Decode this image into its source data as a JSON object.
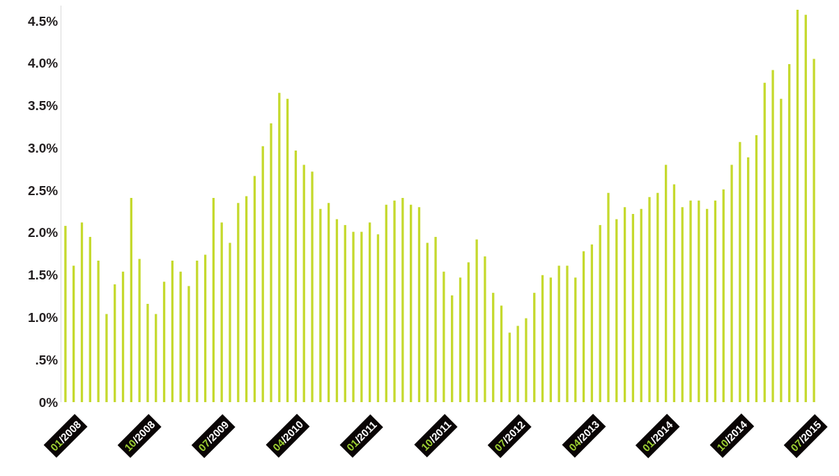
{
  "chart_data": {
    "type": "bar",
    "color": "#c5d92d",
    "categories": [
      "01/2008",
      null,
      null,
      null,
      null,
      null,
      null,
      null,
      null,
      "10/2008",
      null,
      null,
      null,
      null,
      null,
      null,
      null,
      null,
      "07/2009",
      null,
      null,
      null,
      null,
      null,
      null,
      null,
      null,
      "04/2010",
      null,
      null,
      null,
      null,
      null,
      null,
      null,
      null,
      "01/2011",
      null,
      null,
      null,
      null,
      null,
      null,
      null,
      null,
      "10/2011",
      null,
      null,
      null,
      null,
      null,
      null,
      null,
      null,
      "07/2012",
      null,
      null,
      null,
      null,
      null,
      null,
      null,
      null,
      "04/2013",
      null,
      null,
      null,
      null,
      null,
      null,
      null,
      null,
      "01/2014",
      null,
      null,
      null,
      null,
      null,
      null,
      null,
      null,
      "10/2014",
      null,
      null,
      null,
      null,
      null,
      null,
      null,
      null,
      "07/2015",
      null
    ],
    "values": [
      2.08,
      1.61,
      2.12,
      1.95,
      1.67,
      1.04,
      1.39,
      1.54,
      2.41,
      1.69,
      1.16,
      1.04,
      1.42,
      1.67,
      1.54,
      1.37,
      1.67,
      1.74,
      2.41,
      2.12,
      1.88,
      2.35,
      2.43,
      2.67,
      3.02,
      3.29,
      3.65,
      3.58,
      2.97,
      2.8,
      2.72,
      2.28,
      2.35,
      2.16,
      2.09,
      2.01,
      2.01,
      2.12,
      1.98,
      2.33,
      2.38,
      2.41,
      2.33,
      2.3,
      1.88,
      1.95,
      1.54,
      1.26,
      1.47,
      1.65,
      1.92,
      1.72,
      1.29,
      1.14,
      0.82,
      0.9,
      0.99,
      1.29,
      1.5,
      1.47,
      1.61,
      1.61,
      1.47,
      1.78,
      1.86,
      2.09,
      2.47,
      2.16,
      2.3,
      2.22,
      2.28,
      2.42,
      2.47,
      2.8,
      2.57,
      2.3,
      2.38,
      2.38,
      2.28,
      2.38,
      2.51,
      2.8,
      3.07,
      2.89,
      3.15,
      3.77,
      3.92,
      3.58,
      3.99,
      4.63,
      4.57,
      4.05
    ],
    "ylim": [
      0,
      4.68
    ],
    "yticks": [
      {
        "value": 0,
        "label": "0%"
      },
      {
        "value": 0.5,
        "label": ".5%"
      },
      {
        "value": 1,
        "label": "1.0%"
      },
      {
        "value": 1.5,
        "label": "1.5%"
      },
      {
        "value": 2,
        "label": "2.0%"
      },
      {
        "value": 2.5,
        "label": "2.5%"
      },
      {
        "value": 3,
        "label": "3.0%"
      },
      {
        "value": 3.5,
        "label": "3.5%"
      },
      {
        "value": 4,
        "label": "4.0%"
      },
      {
        "value": 4.5,
        "label": "4.5%"
      }
    ]
  }
}
